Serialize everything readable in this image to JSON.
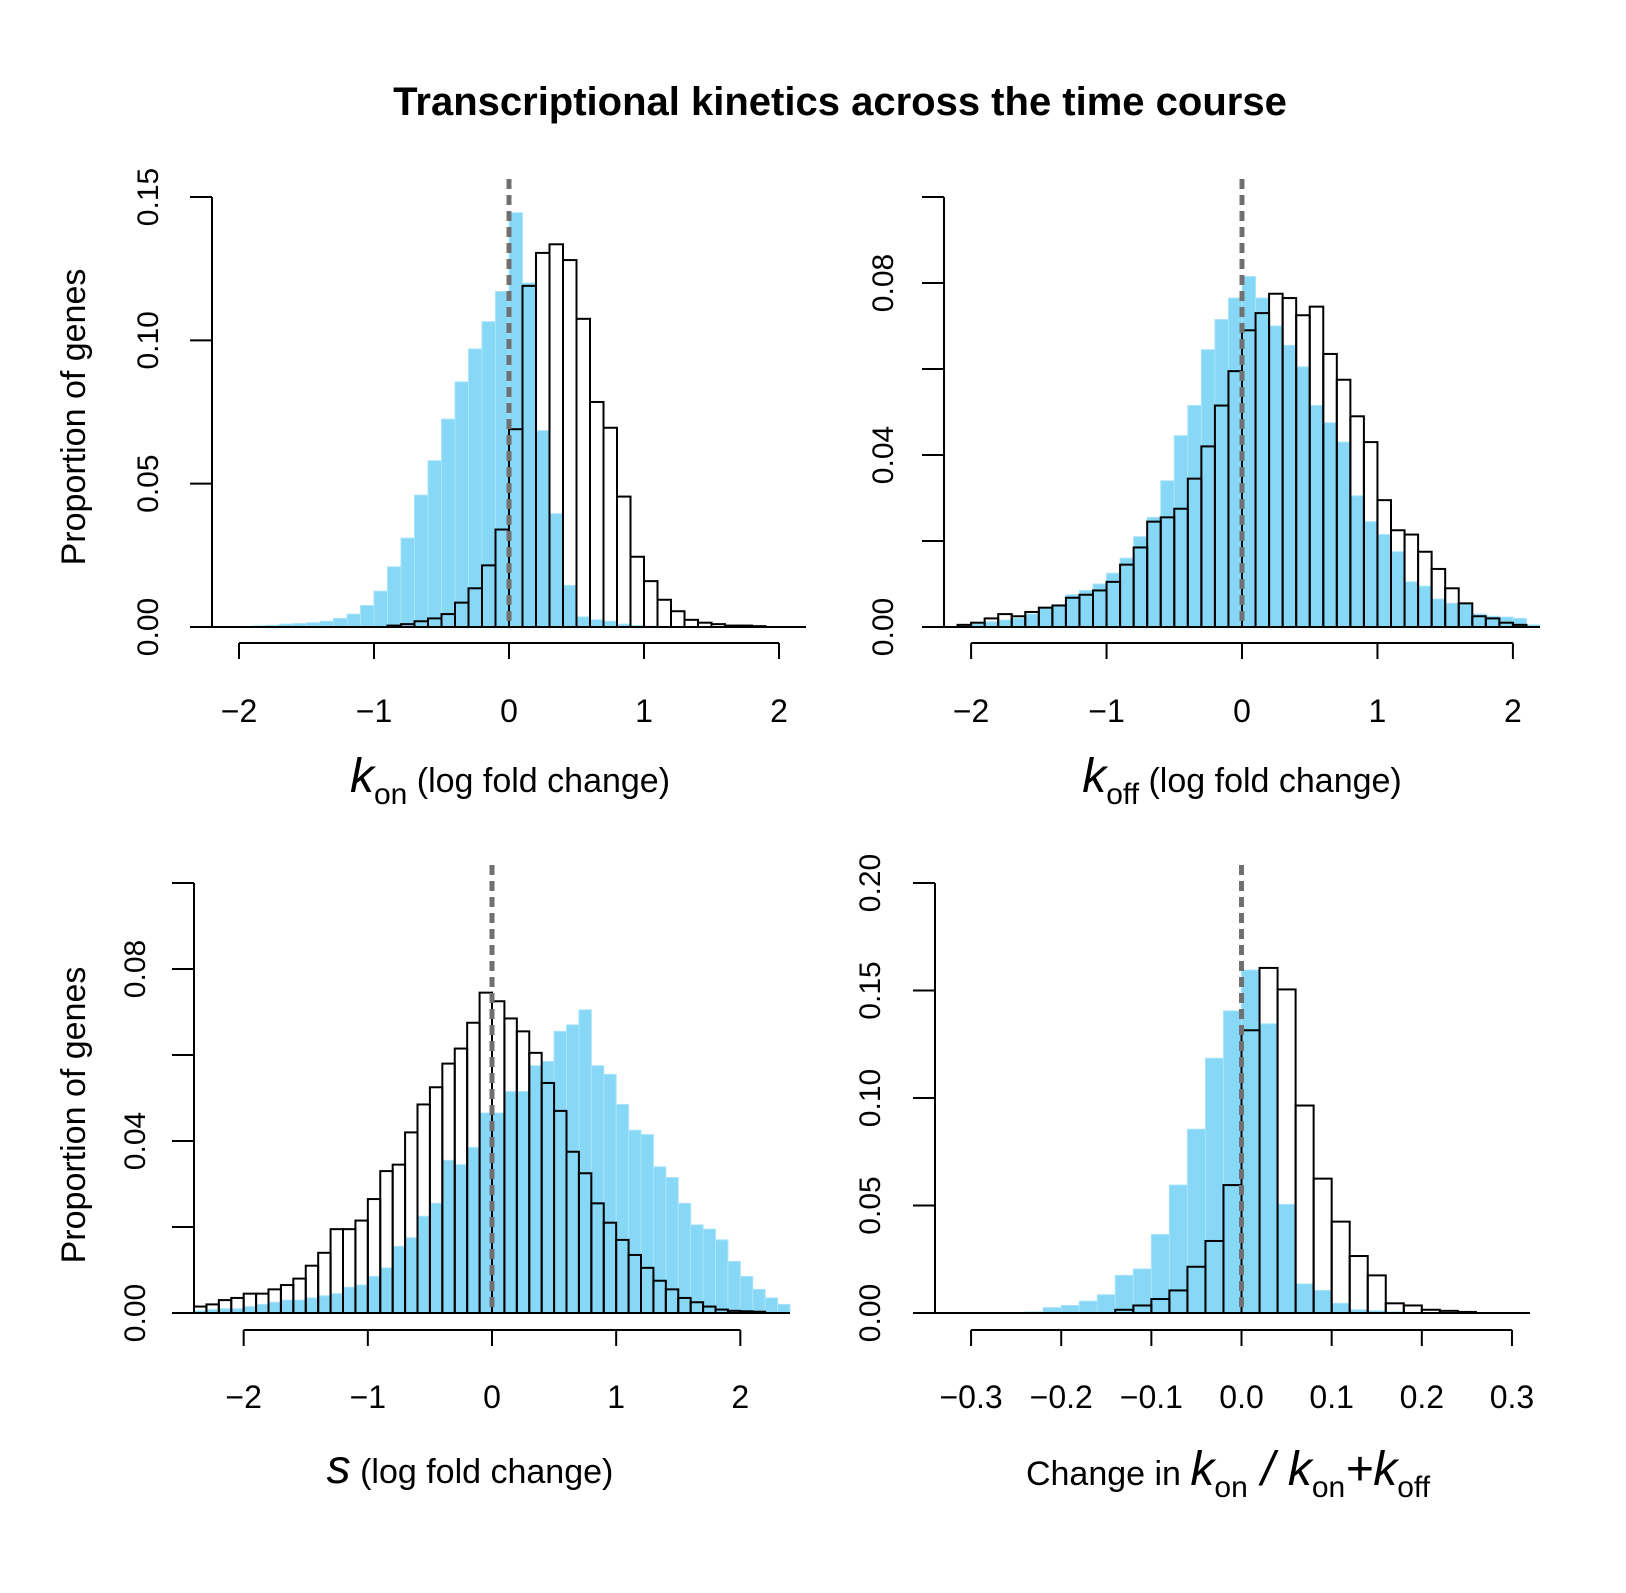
{
  "title": "Transcriptional kinetics across the time course",
  "colors": {
    "filled_hist": "#87d7f7",
    "outline_hist": "#000000",
    "reference_line": "#707070"
  },
  "chart_data": [
    {
      "type": "histogram",
      "id": "kon",
      "xlabel": {
        "symbol": "k",
        "subscript": "on",
        "text": "(log fold change)"
      },
      "ylabel": "Proportion of genes",
      "xticks": [
        -2,
        -1,
        0,
        1,
        2
      ],
      "xtick_labels": [
        "−2",
        "−1",
        "0",
        "1",
        "2"
      ],
      "yticks": [
        0,
        0.05,
        0.1,
        0.15
      ],
      "ytick_labels": [
        "0.00",
        "0.05",
        "0.10",
        "0.15"
      ],
      "xlim": [
        -2.2,
        2.2
      ],
      "ylim": [
        0,
        0.15
      ],
      "reference_x": 0,
      "bin_start": -2.2,
      "bin_width": 0.1,
      "filled": [
        0,
        0,
        0,
        0.0004,
        0.0006,
        0.001,
        0.0012,
        0.0015,
        0.002,
        0.003,
        0.0045,
        0.0075,
        0.0125,
        0.021,
        0.031,
        0.046,
        0.058,
        0.0725,
        0.0855,
        0.097,
        0.1065,
        0.117,
        0.1445,
        0.12,
        0.0685,
        0.0395,
        0.0145,
        0.0035,
        0.0025,
        0.002,
        0.001,
        0.0005,
        0.0003,
        0,
        0,
        0,
        0,
        0,
        0,
        0,
        0,
        0,
        0,
        0
      ],
      "outline": [
        0,
        0,
        0,
        0,
        0,
        0,
        0,
        0,
        0,
        0,
        0,
        0,
        0,
        0.0005,
        0.001,
        0.002,
        0.003,
        0.0045,
        0.0085,
        0.0135,
        0.0215,
        0.034,
        0.069,
        0.119,
        0.1305,
        0.1335,
        0.128,
        0.1075,
        0.0785,
        0.0695,
        0.0455,
        0.0245,
        0.016,
        0.0095,
        0.0055,
        0.0025,
        0.0015,
        0.001,
        0.0005,
        0.0005,
        0.0003,
        0,
        0,
        0
      ]
    },
    {
      "type": "histogram",
      "id": "koff",
      "xlabel": {
        "symbol": "k",
        "subscript": "off",
        "text": "(log fold change)"
      },
      "ylabel": "",
      "xticks": [
        -2,
        -1,
        0,
        1,
        2
      ],
      "xtick_labels": [
        "−2",
        "−1",
        "0",
        "1",
        "2"
      ],
      "yticks": [
        0,
        0.02,
        0.04,
        0.06,
        0.08,
        0.1
      ],
      "ytick_labels": [
        "0.00",
        "",
        "0.04",
        "",
        "0.08",
        ""
      ],
      "xlim": [
        -2.2,
        2.2
      ],
      "ylim": [
        0,
        0.1
      ],
      "reference_x": 0,
      "bin_start": -2.2,
      "bin_width": 0.1,
      "filled": [
        0,
        0.0004,
        0.0008,
        0.0012,
        0.0016,
        0.002,
        0.003,
        0.0045,
        0.0052,
        0.0075,
        0.0085,
        0.01,
        0.0125,
        0.016,
        0.021,
        0.0255,
        0.034,
        0.0445,
        0.0515,
        0.0645,
        0.0715,
        0.0765,
        0.0815,
        0.0765,
        0.07,
        0.0655,
        0.0605,
        0.0515,
        0.0475,
        0.043,
        0.0305,
        0.0245,
        0.0215,
        0.0175,
        0.0105,
        0.0095,
        0.0065,
        0.0055,
        0.0055,
        0.003,
        0.0025,
        0.0023,
        0.002,
        0.0005
      ],
      "outline": [
        0,
        0.0005,
        0.001,
        0.002,
        0.003,
        0.0025,
        0.0035,
        0.0045,
        0.005,
        0.0068,
        0.0075,
        0.0085,
        0.0105,
        0.0145,
        0.0185,
        0.0245,
        0.0255,
        0.0275,
        0.0345,
        0.042,
        0.0515,
        0.0595,
        0.069,
        0.073,
        0.0775,
        0.0765,
        0.0725,
        0.0745,
        0.0635,
        0.0575,
        0.049,
        0.043,
        0.0295,
        0.0225,
        0.0215,
        0.0175,
        0.0135,
        0.009,
        0.0055,
        0.0025,
        0.002,
        0.001,
        0.0005,
        0
      ]
    },
    {
      "type": "histogram",
      "id": "s",
      "xlabel": {
        "symbol": "s",
        "subscript": "",
        "text": "(log fold change)"
      },
      "ylabel": "Proportion of genes",
      "xticks": [
        -2,
        -1,
        0,
        1,
        2
      ],
      "xtick_labels": [
        "−2",
        "−1",
        "0",
        "1",
        "2"
      ],
      "yticks": [
        0,
        0.02,
        0.04,
        0.06,
        0.08,
        0.1
      ],
      "ytick_labels": [
        "0.00",
        "",
        "0.04",
        "",
        "0.08",
        ""
      ],
      "xlim": [
        -2.4,
        2.4
      ],
      "ylim": [
        0,
        0.1
      ],
      "reference_x": 0,
      "bin_start": -2.4,
      "bin_width": 0.1,
      "filled": [
        0.0005,
        0.0008,
        0.001,
        0.001,
        0.0015,
        0.002,
        0.0025,
        0.003,
        0.003,
        0.0035,
        0.004,
        0.0045,
        0.006,
        0.0065,
        0.0085,
        0.0105,
        0.0155,
        0.0175,
        0.0225,
        0.0255,
        0.0355,
        0.0345,
        0.0385,
        0.0465,
        0.0465,
        0.0515,
        0.0515,
        0.0575,
        0.0585,
        0.0655,
        0.067,
        0.0705,
        0.0575,
        0.0555,
        0.0485,
        0.0425,
        0.0415,
        0.034,
        0.0315,
        0.0255,
        0.0205,
        0.0195,
        0.017,
        0.012,
        0.0085,
        0.0055,
        0.0035,
        0.002
      ],
      "outline": [
        0.0015,
        0.002,
        0.003,
        0.0035,
        0.0045,
        0.0045,
        0.0055,
        0.0065,
        0.008,
        0.011,
        0.014,
        0.0195,
        0.0195,
        0.0215,
        0.0265,
        0.033,
        0.0345,
        0.042,
        0.0485,
        0.0525,
        0.058,
        0.0615,
        0.0675,
        0.0745,
        0.0725,
        0.0685,
        0.0655,
        0.0605,
        0.0535,
        0.047,
        0.0375,
        0.0325,
        0.0255,
        0.021,
        0.017,
        0.0135,
        0.0105,
        0.0075,
        0.0055,
        0.0035,
        0.0025,
        0.0015,
        0.0008,
        0.0005,
        0.0004,
        0.0003,
        0,
        0
      ]
    },
    {
      "type": "histogram",
      "id": "kon_ratio",
      "xlabel": {
        "symbol": "k",
        "subscript": "on",
        "text": "Change in",
        "ratio_text": "/",
        "ratio_plus": "+"
      },
      "ylabel": "",
      "xticks": [
        -0.3,
        -0.2,
        -0.1,
        0,
        0.1,
        0.2,
        0.3
      ],
      "xtick_labels": [
        "−0.3",
        "−0.2",
        "−0.1",
        "0.0",
        "0.1",
        "0.2",
        "0.3"
      ],
      "yticks": [
        0,
        0.05,
        0.1,
        0.15,
        0.2
      ],
      "ytick_labels": [
        "0.00",
        "0.05",
        "0.10",
        "0.15",
        "0.20"
      ],
      "xlim": [
        -0.34,
        0.32
      ],
      "ylim": [
        0,
        0.2
      ],
      "reference_x": 0,
      "bin_start": -0.34,
      "bin_width": 0.02,
      "filled": [
        0,
        0,
        0,
        0,
        0,
        0.0005,
        0.0025,
        0.0035,
        0.0055,
        0.0085,
        0.0175,
        0.0205,
        0.0365,
        0.0595,
        0.0855,
        0.1185,
        0.1405,
        0.1595,
        0.1345,
        0.0505,
        0.0135,
        0.0105,
        0.0045,
        0.0015,
        0.001,
        0.0005,
        0.0002,
        0,
        0,
        0,
        0,
        0,
        0
      ],
      "outline": [
        0,
        0,
        0,
        0,
        0,
        0,
        0,
        0,
        0,
        0,
        0.0015,
        0.0035,
        0.0065,
        0.0105,
        0.0215,
        0.0335,
        0.0595,
        0.1315,
        0.1605,
        0.1505,
        0.0965,
        0.0625,
        0.0425,
        0.0265,
        0.0175,
        0.0045,
        0.0035,
        0.0015,
        0.001,
        0.0005,
        0,
        0,
        0
      ]
    }
  ]
}
